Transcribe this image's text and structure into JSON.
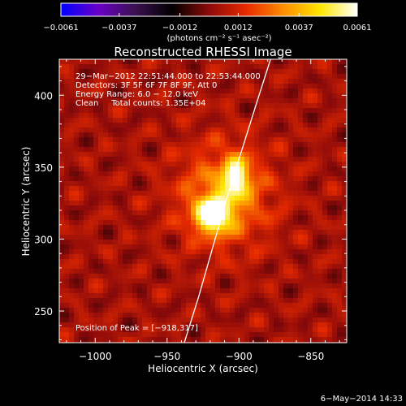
{
  "chart_data": {
    "type": "heatmap",
    "title": "Reconstructed RHESSI Image",
    "xlabel": "Heliocentric X (arcsec)",
    "ylabel": "Heliocentric Y (arcsec)",
    "xlim": [
      -1025,
      -825
    ],
    "ylim": [
      228,
      425
    ],
    "x_ticks": [
      -1000,
      -950,
      -900,
      -850
    ],
    "x_tick_labels": [
      "−1000",
      "−950",
      "−900",
      "−850"
    ],
    "y_ticks": [
      250,
      300,
      350,
      400
    ],
    "y_tick_labels": [
      "250",
      "300",
      "350",
      "400"
    ],
    "colorbar": {
      "min": -0.0061,
      "max": 0.0061,
      "ticks": [
        -0.0061,
        -0.0037,
        -0.0012,
        0.0012,
        0.0037,
        0.0061
      ],
      "tick_labels": [
        "−0.0061",
        "−0.0037",
        "−0.0012",
        "0.0012",
        "0.0037",
        "0.0061"
      ],
      "unit_label": "(photons cm⁻² s⁻¹ asec⁻²)"
    },
    "annotations": [
      "29−Mar−2012 22:51:44.000 to 22:53:44.000",
      "Detectors: 3F 5F 6F 7F 8F 9F, Att 0",
      "Energy Range: 6.0 − 12.0 keV",
      "Clean     Total counts: 1.35E+04"
    ],
    "peak_label": "Position of Peak = [−918,317]",
    "peak": [
      -918,
      317
    ],
    "limb_curve": [
      [
        -938,
        228
      ],
      [
        -928,
        260
      ],
      [
        -918,
        295
      ],
      [
        -908,
        330
      ],
      [
        -897,
        365
      ],
      [
        -886,
        400
      ],
      [
        -878,
        425
      ]
    ],
    "sources": [
      {
        "x": -918,
        "y": 317,
        "amp": 0.0061,
        "sx": 8,
        "sy": 8
      },
      {
        "x": -902,
        "y": 343,
        "amp": 0.0046,
        "sx": 6,
        "sy": 9
      },
      {
        "x": -910,
        "y": 330,
        "amp": 0.0028,
        "sx": 22,
        "sy": 24
      }
    ],
    "grid": false,
    "colormap": [
      "#0000ff",
      "#6a00c8",
      "#3c1050",
      "#000000",
      "#8c0a0a",
      "#e62a00",
      "#ff8c00",
      "#ffe600",
      "#ffffff"
    ]
  },
  "footer": {
    "date": "6−May−2014 14:33"
  }
}
